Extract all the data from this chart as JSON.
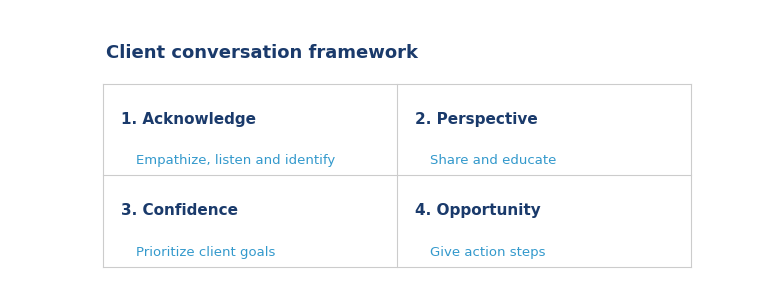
{
  "title": "Client conversation framework",
  "title_color": "#1a3a6b",
  "title_fontsize": 13,
  "title_fontweight": "bold",
  "background_color": "#ffffff",
  "grid_line_color": "#cccccc",
  "heading_color": "#1a3a6b",
  "subtext_color": "#3399cc",
  "heading_fontsize": 11,
  "subtext_fontsize": 9.5,
  "boxes": [
    {
      "number": "1.",
      "heading": "Acknowledge",
      "subtext": "Empathize, listen and identify",
      "col": 0,
      "row": 0
    },
    {
      "number": "2.",
      "heading": "Perspective",
      "subtext": "Share and educate",
      "col": 1,
      "row": 0
    },
    {
      "number": "3.",
      "heading": "Confidence",
      "subtext": "Prioritize client goals",
      "col": 0,
      "row": 1
    },
    {
      "number": "4.",
      "heading": "Opportunity",
      "subtext": "Give action steps",
      "col": 1,
      "row": 1
    }
  ]
}
